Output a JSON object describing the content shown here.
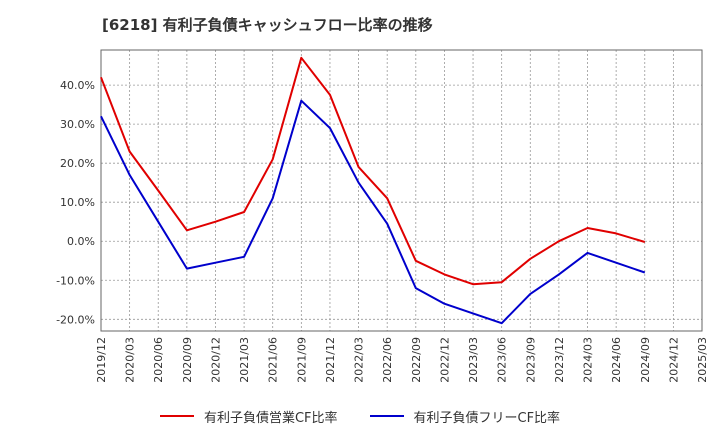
{
  "title": "[6218]  有利子負債キャッシュフロー比率の推移",
  "colors": {
    "series_1": "#e00000",
    "series_2": "#0000cc",
    "grid": "#999999",
    "axis": "#666666"
  },
  "chart_data": {
    "type": "line",
    "title": "[6218]  有利子負債キャッシュフロー比率の推移",
    "xlabel": "",
    "ylabel": "",
    "x": [
      "2019/12",
      "2020/03",
      "2020/06",
      "2020/09",
      "2020/12",
      "2021/03",
      "2021/06",
      "2021/09",
      "2021/12",
      "2022/03",
      "2022/06",
      "2022/09",
      "2022/12",
      "2023/03",
      "2023/06",
      "2023/09",
      "2023/12",
      "2024/03",
      "2024/06",
      "2024/09"
    ],
    "x_tick_labels": [
      "2019/12",
      "2020/03",
      "2020/06",
      "2020/09",
      "2020/12",
      "2021/03",
      "2021/06",
      "2021/09",
      "2021/12",
      "2022/03",
      "2022/06",
      "2022/09",
      "2022/12",
      "2023/03",
      "2023/06",
      "2023/09",
      "2023/12",
      "2024/03",
      "2024/06",
      "2024/09",
      "2024/12",
      "2025/03"
    ],
    "y_ticks": [
      -20,
      -10,
      0,
      10,
      20,
      30,
      40
    ],
    "y_tick_labels": [
      "-20.0%",
      "-10.0%",
      "0.0%",
      "10.0%",
      "20.0%",
      "30.0%",
      "40.0%"
    ],
    "ylim": [
      -23,
      49
    ],
    "grid": true,
    "legend_position": "bottom",
    "series": [
      {
        "name": "有利子負債営業CF比率",
        "color": "#e00000",
        "values": [
          42.0,
          23.0,
          13.0,
          2.8,
          5.0,
          7.5,
          21.0,
          47.0,
          37.5,
          19.0,
          11.0,
          -5.0,
          -8.5,
          -11.0,
          -10.5,
          -4.5,
          0.0,
          3.4,
          2.0,
          -0.2
        ]
      },
      {
        "name": "有利子負債フリーCF比率",
        "color": "#0000cc",
        "values": [
          32.0,
          17.0,
          5.0,
          -7.0,
          -5.5,
          -4.0,
          11.0,
          36.0,
          29.0,
          15.0,
          4.5,
          -12.0,
          -16.0,
          -18.5,
          -21.0,
          -13.5,
          -8.5,
          -3.0,
          -5.5,
          -8.0
        ]
      }
    ]
  }
}
